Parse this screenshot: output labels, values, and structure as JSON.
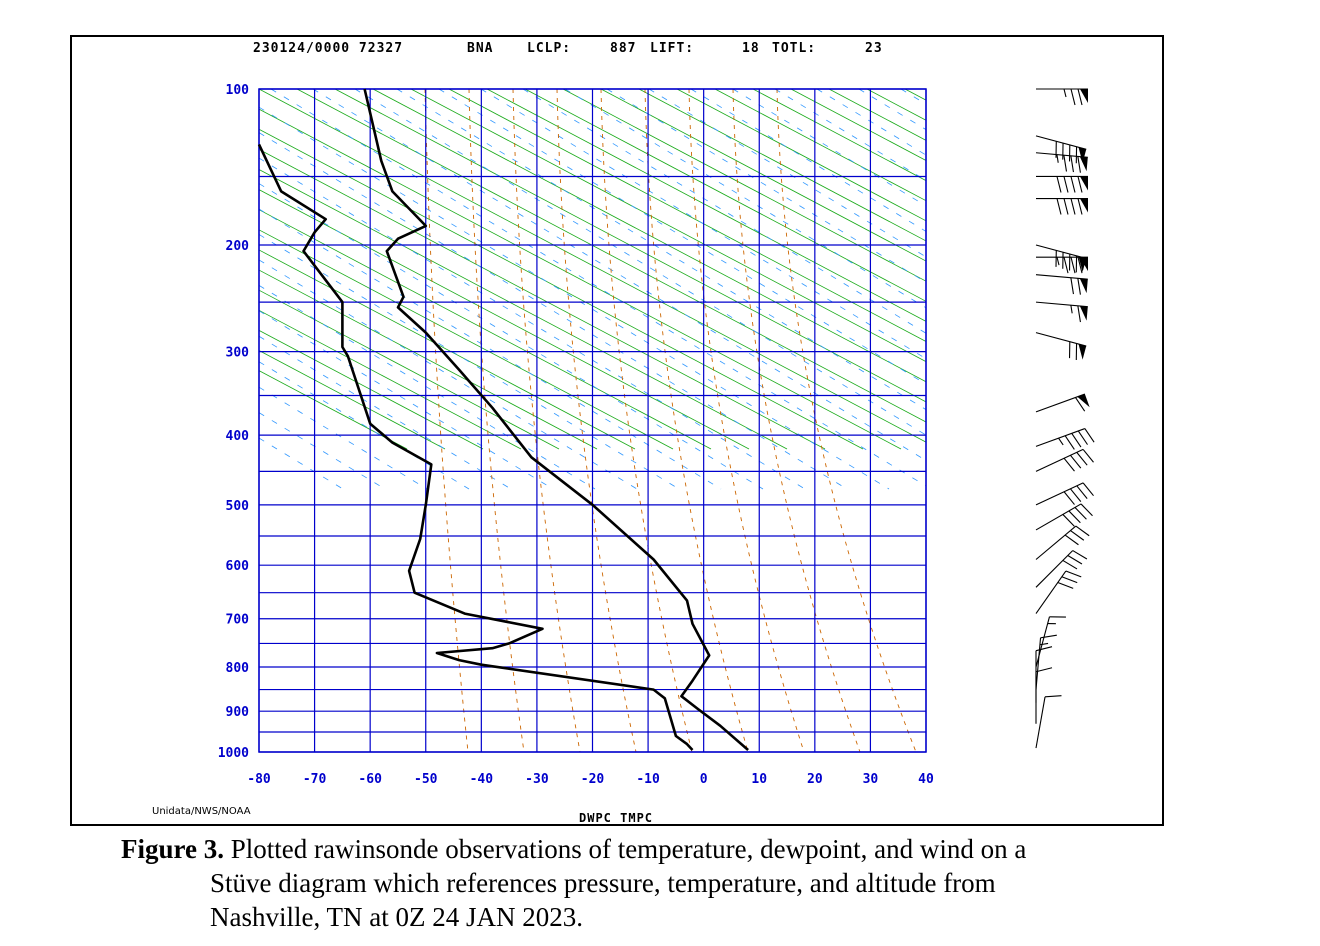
{
  "header": {
    "datetime_station": "230124/0000 72327",
    "station": "BNA",
    "lclp": "LCLP:",
    "lclp_value": "887",
    "lift": "LIFT:",
    "lift_value": "18",
    "totl": "TOTL:",
    "totl_value": "23"
  },
  "credit": "Unidata/NWS/NOAA",
  "xaxis_title": "DWPC TMPC",
  "caption": {
    "label": "Figure 3.",
    "line1": " Plotted rawinsonde observations of temperature, dewpoint, and wind on a",
    "line2": "Stüve diagram which references pressure, temperature, and altitude from",
    "line3": "Nashville, TN at 0Z 24 JAN 2023."
  },
  "colors": {
    "grid": "#0000cc",
    "dry_adiabat": "#1aaa1a",
    "moist_adiabat": "#cc6600",
    "mixing_ratio": "#3399ff",
    "profile": "#000000"
  },
  "chart_data": {
    "type": "line",
    "diagram": "Stüve",
    "x_ticks": [
      -80,
      -70,
      -60,
      -50,
      -40,
      -30,
      -20,
      -10,
      0,
      10,
      20,
      30,
      40
    ],
    "y_ticks": [
      100,
      200,
      300,
      400,
      500,
      600,
      700,
      800,
      900,
      1000
    ],
    "xlim": [
      -80,
      40
    ],
    "ylim": [
      1000,
      100
    ],
    "y_scale": "pressure (p^0.286)",
    "series": [
      {
        "name": "TMPC",
        "points": [
          [
            -61,
            100
          ],
          [
            -58,
            140
          ],
          [
            -56,
            160
          ],
          [
            -50,
            185
          ],
          [
            -55,
            195
          ],
          [
            -57,
            205
          ],
          [
            -54,
            245
          ],
          [
            -55,
            255
          ],
          [
            -50,
            280
          ],
          [
            -44,
            320
          ],
          [
            -38,
            365
          ],
          [
            -31,
            430
          ],
          [
            -20,
            500
          ],
          [
            -9,
            590
          ],
          [
            -3,
            665
          ],
          [
            -2,
            710
          ],
          [
            1,
            775
          ],
          [
            -2,
            830
          ],
          [
            -4,
            865
          ],
          [
            -1,
            895
          ],
          [
            3,
            935
          ],
          [
            8,
            995
          ]
        ]
      },
      {
        "name": "DWPC",
        "points": [
          [
            -80,
            130
          ],
          [
            -76,
            160
          ],
          [
            -68,
            180
          ],
          [
            -70,
            190
          ],
          [
            -72,
            205
          ],
          [
            -65,
            250
          ],
          [
            -65,
            295
          ],
          [
            -64,
            305
          ],
          [
            -60,
            385
          ],
          [
            -56,
            410
          ],
          [
            -49,
            440
          ],
          [
            -50,
            500
          ],
          [
            -51,
            555
          ],
          [
            -53,
            610
          ],
          [
            -52,
            650
          ],
          [
            -43,
            690
          ],
          [
            -29,
            720
          ],
          [
            -35,
            750
          ],
          [
            -38,
            760
          ],
          [
            -48,
            770
          ],
          [
            -44,
            785
          ],
          [
            -40,
            795
          ],
          [
            -9,
            850
          ],
          [
            -8,
            860
          ],
          [
            -7,
            870
          ],
          [
            -5,
            960
          ],
          [
            -3,
            980
          ],
          [
            -2,
            995
          ]
        ]
      }
    ],
    "winds": [
      {
        "p": 100,
        "dir": 270,
        "speed": 75
      },
      {
        "p": 125,
        "dir": 285,
        "speed": 90
      },
      {
        "p": 135,
        "dir": 275,
        "speed": 85
      },
      {
        "p": 150,
        "dir": 270,
        "speed": 90
      },
      {
        "p": 165,
        "dir": 270,
        "speed": 90
      },
      {
        "p": 200,
        "dir": 285,
        "speed": 90
      },
      {
        "p": 210,
        "dir": 270,
        "speed": 85
      },
      {
        "p": 225,
        "dir": 275,
        "speed": 70
      },
      {
        "p": 250,
        "dir": 275,
        "speed": 65
      },
      {
        "p": 280,
        "dir": 285,
        "speed": 70
      },
      {
        "p": 370,
        "dir": 250,
        "speed": 60
      },
      {
        "p": 415,
        "dir": 250,
        "speed": 45
      },
      {
        "p": 450,
        "dir": 245,
        "speed": 40
      },
      {
        "p": 500,
        "dir": 245,
        "speed": 40
      },
      {
        "p": 540,
        "dir": 240,
        "speed": 40
      },
      {
        "p": 590,
        "dir": 230,
        "speed": 30
      },
      {
        "p": 640,
        "dir": 225,
        "speed": 30
      },
      {
        "p": 690,
        "dir": 215,
        "speed": 30
      },
      {
        "p": 800,
        "dir": 195,
        "speed": 15
      },
      {
        "p": 850,
        "dir": 185,
        "speed": 15
      },
      {
        "p": 880,
        "dir": 180,
        "speed": 10
      },
      {
        "p": 930,
        "dir": 180,
        "speed": 10
      },
      {
        "p": 990,
        "dir": 190,
        "speed": 10
      }
    ]
  }
}
